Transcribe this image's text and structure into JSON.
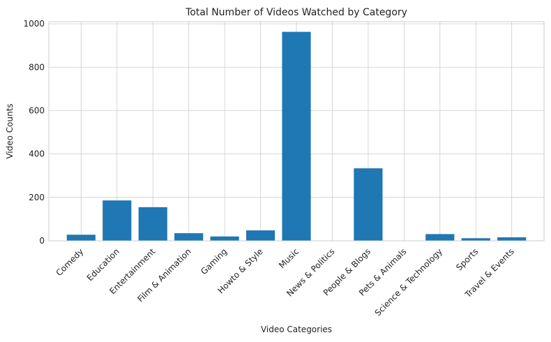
{
  "chart_data": {
    "type": "bar",
    "title": "Total Number of Videos Watched by Category",
    "xlabel": "Video Categories",
    "ylabel": "Video Counts",
    "categories": [
      "Comedy",
      "Education",
      "Entertainment",
      "Film & Animation",
      "Gaming",
      "Howto & Style",
      "Music",
      "News & Politics",
      "People & Blogs",
      "Pets & Animals",
      "Science & Technology",
      "Sports",
      "Travel & Events"
    ],
    "values": [
      28,
      186,
      155,
      35,
      20,
      48,
      963,
      1,
      334,
      1,
      31,
      12,
      16
    ],
    "ylim": [
      0,
      1010
    ],
    "yticks": [
      0,
      200,
      400,
      600,
      800,
      1000
    ],
    "grid": true,
    "legend": "none",
    "bar_color": "#1f77b4"
  }
}
